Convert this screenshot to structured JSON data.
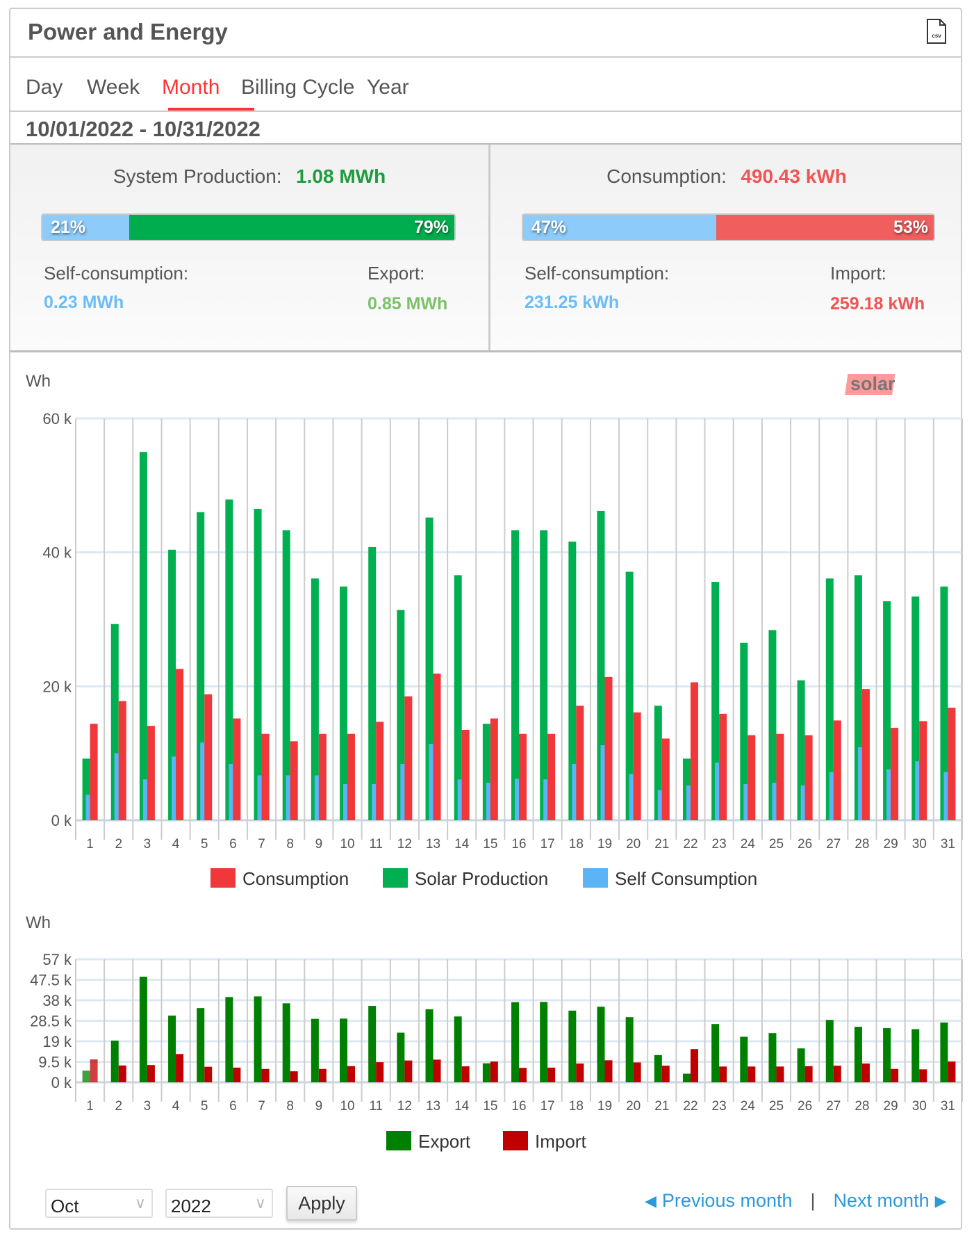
{
  "header": {
    "title": "Power and Energy",
    "export_icon": "csv-file-icon"
  },
  "tabs": [
    {
      "label": "Day"
    },
    {
      "label": "Week"
    },
    {
      "label": "Month",
      "active": true
    },
    {
      "label": "Billing Cycle"
    },
    {
      "label": "Year"
    }
  ],
  "date_range": "10/01/2022 - 10/31/2022",
  "production": {
    "label": "System Production:",
    "value": "1.08 MWh",
    "self_pct": "21%",
    "export_pct": "79%",
    "self_fraction": 0.21,
    "self_label": "Self-consumption:",
    "self_value": "0.23 MWh",
    "export_label": "Export:",
    "export_value": "0.85 MWh"
  },
  "consumption": {
    "label": "Consumption:",
    "value": "490.43 kWh",
    "self_pct": "47%",
    "import_pct": "53%",
    "self_fraction": 0.47,
    "self_label": "Self-consumption:",
    "self_value": "231.25 kWh",
    "import_label": "Import:",
    "import_value": "259.18 kWh"
  },
  "colors": {
    "green": "#00b050",
    "red": "#f0373a",
    "blue": "#5ab4f5",
    "export": "#008000",
    "import": "#c00000",
    "accent": "#ff3333",
    "link": "#2a9ad8"
  },
  "logo": "solaredge",
  "chart_data": [
    {
      "type": "bar",
      "ylabel": "Wh",
      "ylim": [
        0,
        60000
      ],
      "yticks": [
        "0 k",
        "20 k",
        "40 k",
        "60 k"
      ],
      "ytick_values": [
        0,
        20000,
        40000,
        60000
      ],
      "categories": [
        "1",
        "2",
        "3",
        "4",
        "5",
        "6",
        "7",
        "8",
        "9",
        "10",
        "11",
        "12",
        "13",
        "14",
        "15",
        "16",
        "17",
        "18",
        "19",
        "20",
        "21",
        "22",
        "23",
        "24",
        "25",
        "26",
        "27",
        "28",
        "29",
        "30",
        "31"
      ],
      "series": [
        {
          "name": "Consumption",
          "color": "#f0373a",
          "values": [
            14400,
            17800,
            14100,
            22600,
            18800,
            15200,
            12900,
            11800,
            12900,
            12900,
            14700,
            18500,
            21900,
            13500,
            15200,
            12900,
            12900,
            17100,
            21400,
            16100,
            12200,
            20600,
            15900,
            12700,
            12900,
            12700,
            14900,
            19600,
            13800,
            14800,
            16800
          ]
        },
        {
          "name": "Solar Production",
          "color": "#00b050",
          "values": [
            9200,
            29300,
            55000,
            40400,
            46000,
            47900,
            46500,
            43300,
            36100,
            34900,
            40800,
            31400,
            45200,
            36600,
            14400,
            43300,
            43300,
            41600,
            46200,
            37100,
            17100,
            9200,
            35600,
            26500,
            28400,
            20900,
            36100,
            36600,
            32700,
            33400,
            34900
          ]
        },
        {
          "name": "Self Consumption",
          "color": "#5ab4f5",
          "values": [
            3800,
            10000,
            6100,
            9500,
            11600,
            8400,
            6700,
            6700,
            6700,
            5400,
            5400,
            8400,
            11400,
            6100,
            5600,
            6200,
            6100,
            8400,
            11200,
            6900,
            4500,
            5200,
            8600,
            5400,
            5600,
            5200,
            7200,
            10900,
            7600,
            8800,
            7200
          ]
        }
      ],
      "legend": "bottom",
      "grid": true
    },
    {
      "type": "bar",
      "ylabel": "Wh",
      "ylim": [
        0,
        57000
      ],
      "yticks": [
        "0 k",
        "9.5 k",
        "19 k",
        "28.5 k",
        "38 k",
        "47.5 k",
        "57 k"
      ],
      "ytick_values": [
        0,
        9500,
        19000,
        28500,
        38000,
        47500,
        57000
      ],
      "categories": [
        "1",
        "2",
        "3",
        "4",
        "5",
        "6",
        "7",
        "8",
        "9",
        "10",
        "11",
        "12",
        "13",
        "14",
        "15",
        "16",
        "17",
        "18",
        "19",
        "20",
        "21",
        "22",
        "23",
        "24",
        "25",
        "26",
        "27",
        "28",
        "29",
        "30",
        "31"
      ],
      "series": [
        {
          "name": "Export",
          "color": "#008000",
          "values": [
            5400,
            19300,
            48900,
            30900,
            34400,
            39500,
            39800,
            36600,
            29400,
            29500,
            35400,
            23000,
            33800,
            30500,
            8800,
            37100,
            37200,
            33200,
            35000,
            30200,
            12600,
            4000,
            27000,
            21100,
            22800,
            15700,
            28900,
            25700,
            25100,
            24600,
            27700
          ]
        },
        {
          "name": "Import",
          "color": "#c00000",
          "values": [
            10600,
            7800,
            8000,
            13100,
            7200,
            6800,
            6200,
            5100,
            6200,
            7500,
            9300,
            10100,
            10500,
            7400,
            9600,
            6700,
            6800,
            8700,
            10200,
            9200,
            7700,
            15400,
            7300,
            7300,
            7300,
            7500,
            7700,
            8700,
            6200,
            6000,
            9600
          ]
        }
      ],
      "legend": "bottom",
      "grid": true
    }
  ],
  "controls": {
    "month": "Oct",
    "year": "2022",
    "apply": "Apply",
    "prev": "Previous month",
    "separator": "|",
    "next": "Next month"
  }
}
